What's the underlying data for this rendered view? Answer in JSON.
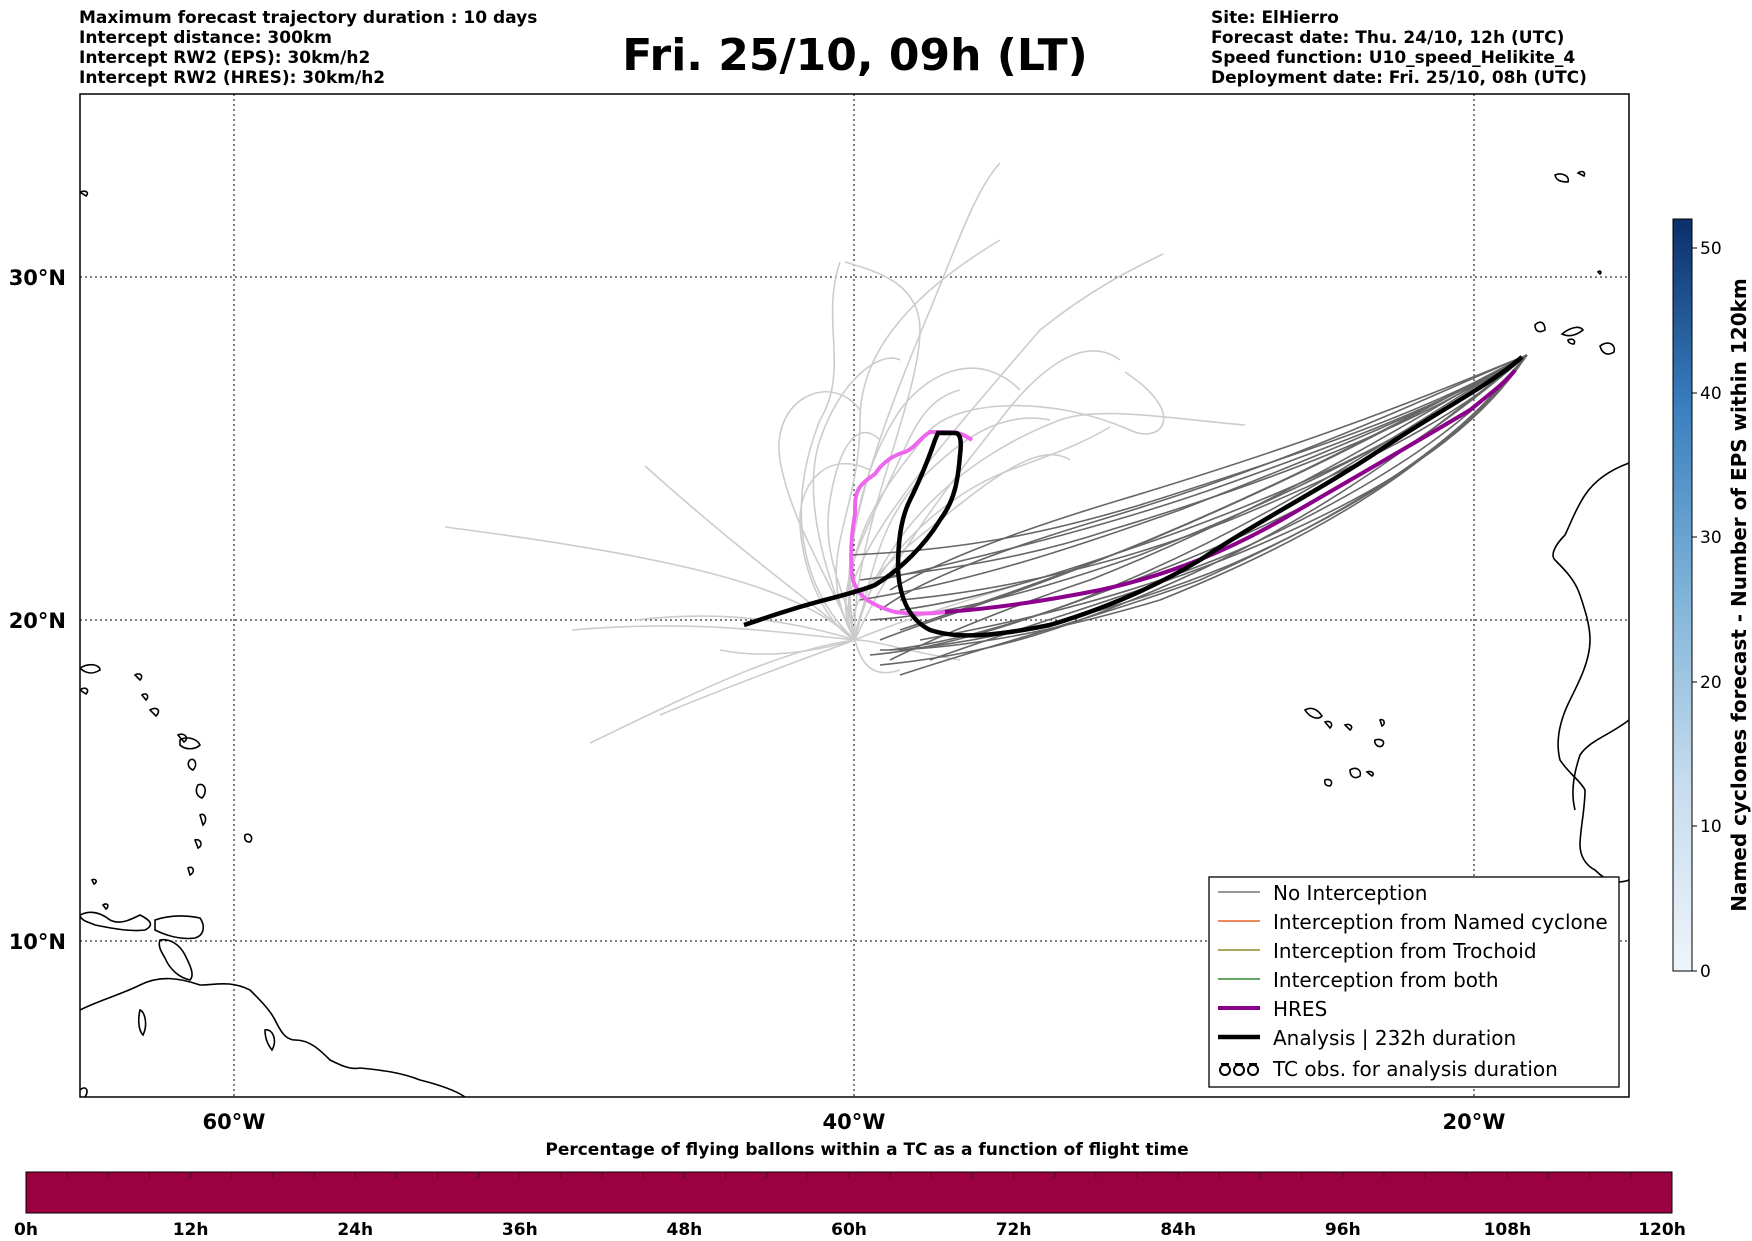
{
  "header": {
    "left": [
      "Maximum forecast trajectory duration : 10 days",
      "Intercept distance: 300km",
      "Intercept RW2 (EPS):  30km/h2",
      "Intercept RW2 (HRES): 30km/h2"
    ],
    "title": "Fri. 25/10, 09h (LT)",
    "right": [
      "Site: ElHierro",
      "Forecast date: Thu. 24/10, 12h (UTC)",
      "Speed function: U10_speed_Helikite_4",
      "Deployment date: Fri. 25/10, 08h (UTC)"
    ]
  },
  "map": {
    "lat_labels": [
      "30°N",
      "20°N",
      "10°N"
    ],
    "lon_labels": [
      "60°W",
      "40°W",
      "20°W"
    ],
    "lon_range": [
      -65,
      -15
    ],
    "lat_range": [
      5,
      34
    ],
    "colors": {
      "eps_no_interception": "#666666",
      "eps_light": "#cccccc",
      "hres": "#8b008b",
      "hres_light": "#ee66ee",
      "analysis": "#000000",
      "coast": "#000000"
    }
  },
  "legend": {
    "items": [
      {
        "label": "No Interception",
        "color": "#777777",
        "style": "thin"
      },
      {
        "label": "Interception from Named cyclone",
        "color": "#e8622a",
        "style": "thin"
      },
      {
        "label": "Interception from Trochoid",
        "color": "#8b8b2a",
        "style": "thin"
      },
      {
        "label": "Interception from both",
        "color": "#2e8b2e",
        "style": "thin"
      },
      {
        "label": "HRES",
        "color": "#8b008b",
        "style": "thick"
      },
      {
        "label": "Analysis | 232h duration",
        "color": "#000000",
        "style": "thick"
      },
      {
        "label": "TC obs. for analysis duration",
        "color": "#000000",
        "style": "symbol",
        "symbol": "ᴏᴏᴏ"
      }
    ]
  },
  "colorbar_right": {
    "label": "Named cyclones forecast - Number of EPS within 120km",
    "ticks": [
      "0",
      "10",
      "20",
      "30",
      "40",
      "50"
    ],
    "range": [
      0,
      52
    ]
  },
  "colorbar_bottom": {
    "title": "Percentage of flying ballons within a TC as a function of flight time",
    "ticks": [
      "0h",
      "12h",
      "24h",
      "36h",
      "48h",
      "60h",
      "72h",
      "84h",
      "96h",
      "108h",
      "120h"
    ],
    "color": "#9b0040"
  }
}
